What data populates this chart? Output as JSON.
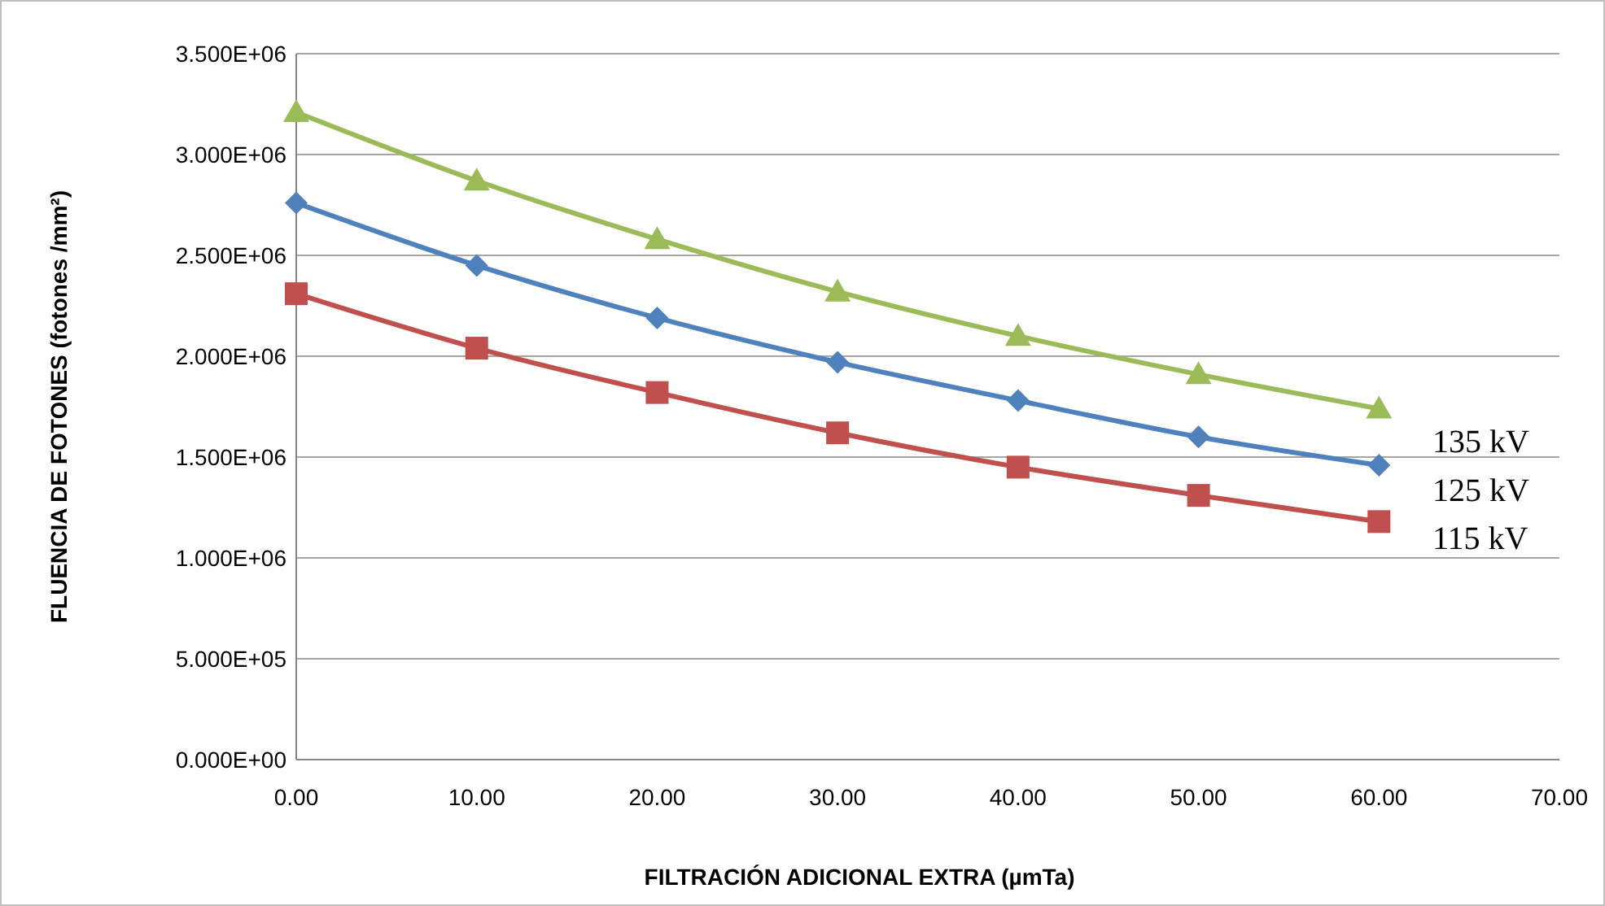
{
  "chart_data": {
    "type": "line",
    "xlabel": "FILTRACIÓN ADICIONAL EXTRA (µmTa)",
    "ylabel": "FLUENCIA DE FOTONES (fotones /mm²)",
    "x": [
      0,
      10,
      20,
      30,
      40,
      50,
      60
    ],
    "series": [
      {
        "name": "135 kV",
        "color": "#9bbb59",
        "marker": "triangle",
        "values": [
          3210000,
          2870000,
          2580000,
          2320000,
          2100000,
          1910000,
          1740000
        ]
      },
      {
        "name": "125 kV",
        "color": "#4f81bd",
        "marker": "diamond",
        "values": [
          2760000,
          2450000,
          2190000,
          1970000,
          1780000,
          1600000,
          1460000
        ]
      },
      {
        "name": "115 kV",
        "color": "#c0504d",
        "marker": "square",
        "values": [
          2310000,
          2040000,
          1820000,
          1620000,
          1450000,
          1310000,
          1180000
        ]
      }
    ],
    "xlim": [
      0,
      70
    ],
    "xticks": [
      {
        "value": 0,
        "label": "0.00"
      },
      {
        "value": 10,
        "label": "10.00"
      },
      {
        "value": 20,
        "label": "20.00"
      },
      {
        "value": 30,
        "label": "30.00"
      },
      {
        "value": 40,
        "label": "40.00"
      },
      {
        "value": 50,
        "label": "50.00"
      },
      {
        "value": 60,
        "label": "60.00"
      },
      {
        "value": 70,
        "label": "70.00"
      }
    ],
    "ylim": [
      0,
      3500000
    ],
    "yticks": [
      {
        "value": 0,
        "label": "0.000E+00"
      },
      {
        "value": 500000,
        "label": "5.000E+05"
      },
      {
        "value": 1000000,
        "label": "1.000E+06"
      },
      {
        "value": 1500000,
        "label": "1.500E+06"
      },
      {
        "value": 2000000,
        "label": "2.000E+06"
      },
      {
        "value": 2500000,
        "label": "2.500E+06"
      },
      {
        "value": 3000000,
        "label": "3.000E+06"
      },
      {
        "value": 3500000,
        "label": "3.500E+06"
      }
    ],
    "grid": "y",
    "legend": "right",
    "line_style": "solid"
  }
}
